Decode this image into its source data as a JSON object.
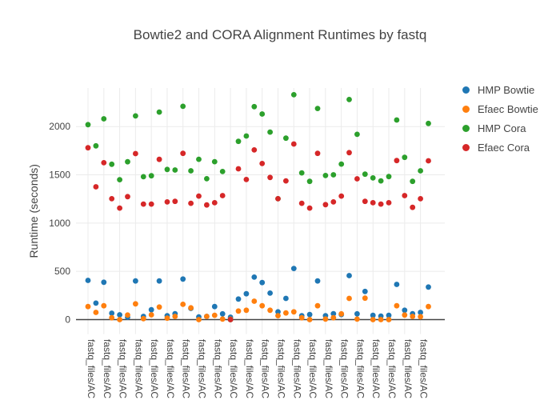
{
  "title": "Bowtie2 and CORA Alignment Runtimes by fastq",
  "chart_data": {
    "type": "scatter",
    "title": "Bowtie2 and CORA Alignment Runtimes by fastq",
    "xlabel": "",
    "ylabel": "Runtime (seconds)",
    "x_tick_label": "fastq_files/AC",
    "n_categories": 44,
    "x_ticks_every": 2,
    "yticks": [
      0,
      500,
      1000,
      1500,
      2000
    ],
    "ylim": [
      -150,
      2400
    ],
    "grid": true,
    "legend_position": "right",
    "marker_size": 6.8,
    "colors": {
      "grid": "#ebebeb",
      "zeroline": "#444444",
      "text": "#444444"
    },
    "series": [
      {
        "name": "HMP Bowtie",
        "color": "#1f77b4",
        "values": [
          406,
          171,
          387,
          66,
          50,
          25,
          400,
          33,
          102,
          400,
          40,
          61,
          420,
          116,
          27,
          33,
          135,
          60,
          25,
          213,
          268,
          440,
          384,
          274,
          80,
          220,
          530,
          41,
          52,
          400,
          41,
          61,
          52,
          456,
          60,
          292,
          44,
          36,
          44,
          365,
          97,
          61,
          75,
          337
        ]
      },
      {
        "name": "Efaec Bowtie",
        "color": "#ff7f0e",
        "values": [
          135,
          75,
          143,
          19,
          0,
          47,
          163,
          10,
          50,
          130,
          15,
          33,
          158,
          122,
          0,
          33,
          45,
          6,
          5,
          89,
          97,
          191,
          143,
          97,
          41,
          69,
          80,
          19,
          0,
          143,
          6,
          19,
          60,
          220,
          5,
          222,
          0,
          0,
          0,
          143,
          47,
          33,
          30,
          135
        ]
      },
      {
        "name": "HMP Cora",
        "color": "#2ca02c",
        "values": [
          2020,
          1800,
          2080,
          1610,
          1450,
          1635,
          2110,
          1480,
          1490,
          2150,
          1556,
          1550,
          2210,
          1542,
          1661,
          1460,
          1636,
          1534,
          0,
          1847,
          1902,
          2206,
          2130,
          1943,
          1252,
          1880,
          2330,
          1520,
          1432,
          2187,
          1493,
          1500,
          1611,
          2280,
          1920,
          1507,
          1468,
          1437,
          1482,
          2068,
          1681,
          1432,
          1542,
          2032
        ]
      },
      {
        "name": "Efaec Cora",
        "color": "#d62728",
        "values": [
          1780,
          1376,
          1625,
          1252,
          1155,
          1274,
          1720,
          1197,
          1197,
          1660,
          1219,
          1225,
          1722,
          1205,
          1280,
          1188,
          1211,
          1285,
          0,
          1562,
          1451,
          1758,
          1617,
          1473,
          1252,
          1437,
          1819,
          1205,
          1155,
          1722,
          1191,
          1219,
          1280,
          1730,
          1459,
          1225,
          1211,
          1197,
          1211,
          1648,
          1285,
          1163,
          1252,
          1645
        ]
      }
    ]
  }
}
